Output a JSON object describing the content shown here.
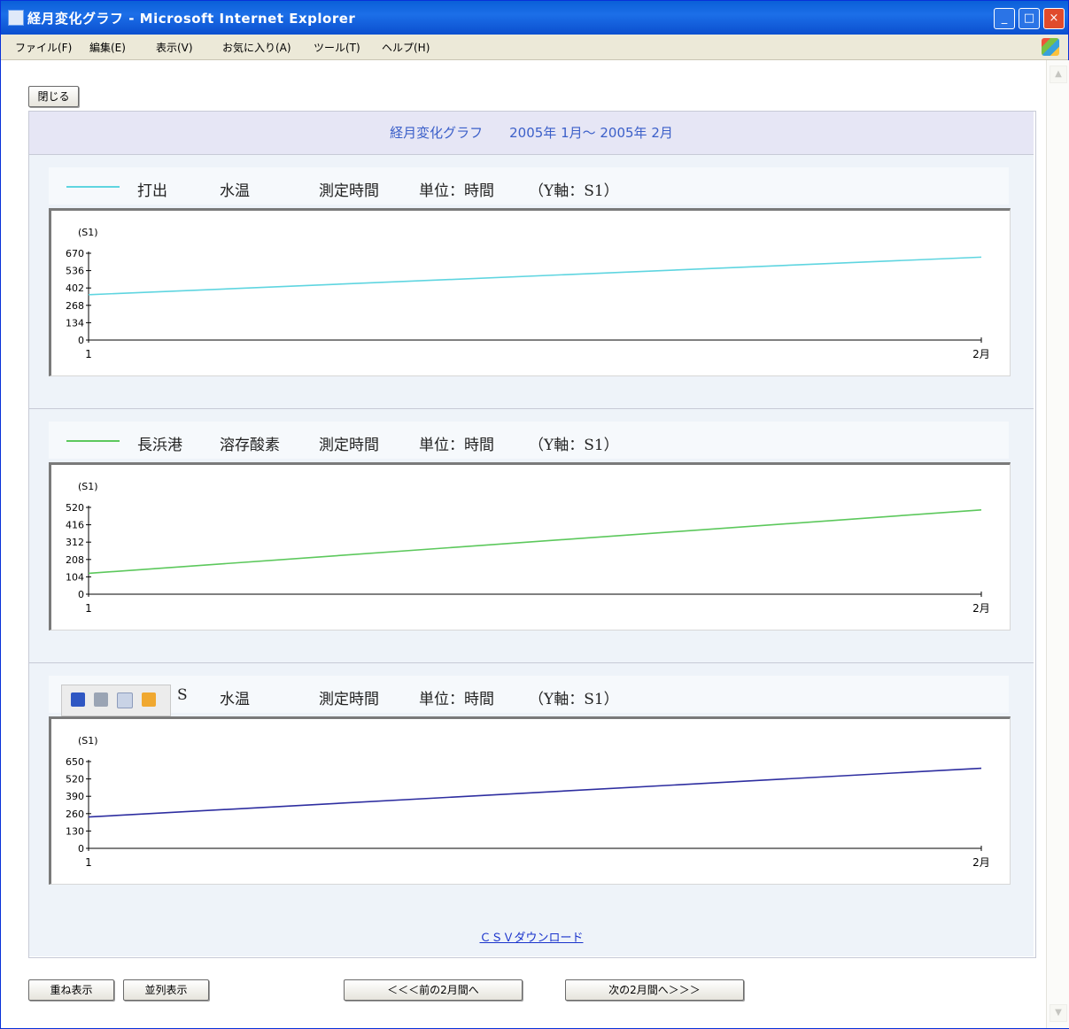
{
  "window": {
    "title": "経月変化グラフ - Microsoft Internet Explorer",
    "controls": {
      "minimize": "_",
      "maximize": "□",
      "close": "×"
    }
  },
  "menu": [
    {
      "label": "ファイル(F)"
    },
    {
      "label": "編集(E)"
    },
    {
      "label": "表示(V)"
    },
    {
      "label": "お気に入り(A)"
    },
    {
      "label": "ツール(T)"
    },
    {
      "label": "ヘルプ(H)"
    }
  ],
  "toolbar": {
    "close_label": "閉じる"
  },
  "header": {
    "title": "経月変化グラフ　　2005年 1月～ 2005年 2月"
  },
  "legend_common": {
    "measure": "測定時間",
    "unit": "単位：時間",
    "axis": "（Y軸：S1）"
  },
  "chart_data": [
    {
      "type": "line",
      "legend": {
        "name": "打出",
        "item": "水温"
      },
      "y_unit_label": "(S1)",
      "yticks": [
        0,
        134,
        268,
        402,
        536,
        670
      ],
      "ylim": [
        0,
        670
      ],
      "x": [
        "1",
        "2月"
      ],
      "series": [
        {
          "name": "打出",
          "color": "#5fd5e0",
          "values": [
            350,
            640
          ]
        }
      ]
    },
    {
      "type": "line",
      "legend": {
        "name": "長浜港",
        "item": "溶存酸素"
      },
      "y_unit_label": "(S1)",
      "yticks": [
        0,
        104,
        208,
        312,
        416,
        520
      ],
      "ylim": [
        0,
        520
      ],
      "x": [
        "1",
        "2月"
      ],
      "series": [
        {
          "name": "長浜港",
          "color": "#5cc85c",
          "values": [
            125,
            505
          ]
        }
      ]
    },
    {
      "type": "line",
      "legend": {
        "name": "S",
        "item": "水温"
      },
      "y_unit_label": "(S1)",
      "yticks": [
        0,
        130,
        260,
        390,
        520,
        650
      ],
      "ylim": [
        0,
        650
      ],
      "x": [
        "1",
        "2月"
      ],
      "series": [
        {
          "name": "S",
          "color": "#2e2ea0",
          "values": [
            235,
            600
          ]
        }
      ]
    }
  ],
  "csv": {
    "link": "ＣＳＶダウンロード"
  },
  "footer": {
    "overlay_button": "重ね表示",
    "parallel_button": "並列表示",
    "prev_button": "＜＜＜前の2月間へ",
    "next_button": "次の2月間へ＞＞＞"
  },
  "scrollbar": {
    "up": "▲",
    "down": "▼"
  }
}
